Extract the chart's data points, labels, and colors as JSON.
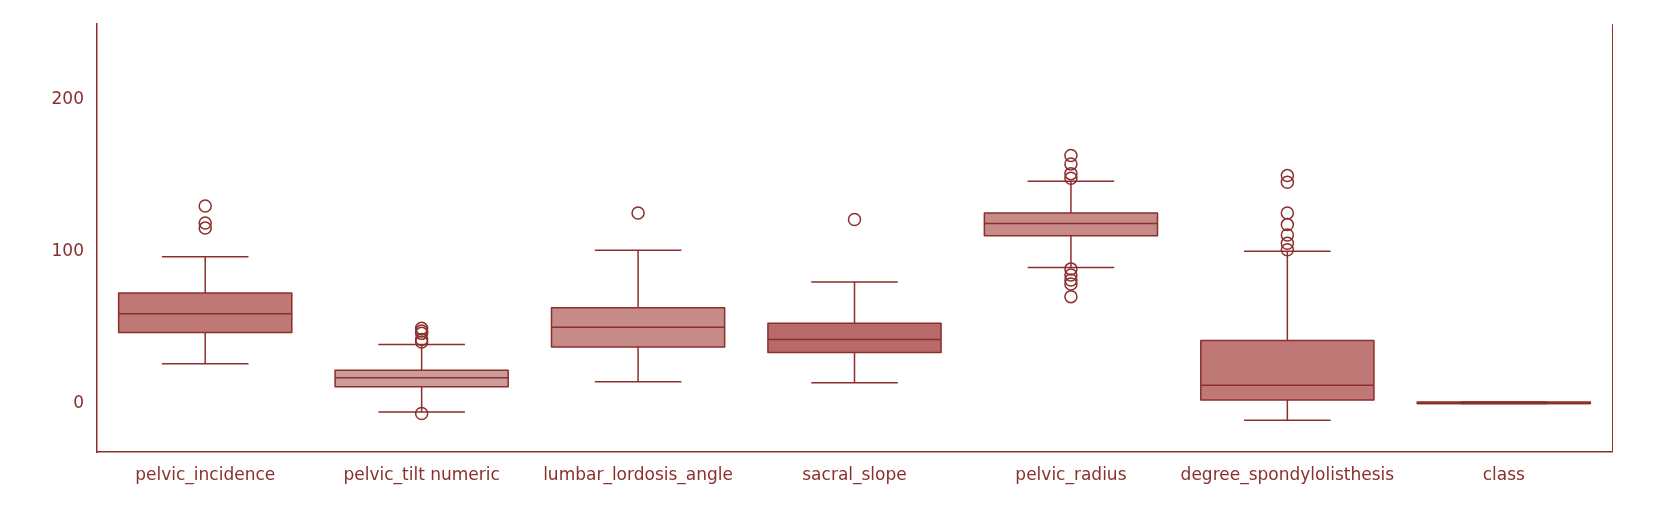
{
  "chart_data": {
    "type": "box",
    "categories": [
      "pelvic_incidence",
      "pelvic_tilt numeric",
      "lumbar_lordosis_angle",
      "sacral_slope",
      "pelvic_radius",
      "degree_spondylolisthesis",
      "class"
    ],
    "colors": [
      "#bf7876",
      "#cc9c9b",
      "#c68a88",
      "#b86a68",
      "#c68a88",
      "#bf7876",
      "#bf7876"
    ],
    "boxes": [
      {
        "low": 26.2,
        "q1": 46.8,
        "median": 59.1,
        "q3": 72.8,
        "high": 96.7,
        "outliers": [
          130.2,
          119,
          115.6
        ]
      },
      {
        "low": -5.6,
        "q1": 11,
        "median": 16.9,
        "q3": 21.9,
        "high": 38.9,
        "outliers": [
          49.5,
          47.8,
          46.2,
          42.2,
          40.5,
          -6.6
        ]
      },
      {
        "low": 14.3,
        "q1": 37.2,
        "median": 50.2,
        "q3": 63.1,
        "high": 101,
        "outliers": [
          125.6
        ]
      },
      {
        "low": 13.6,
        "q1": 33.6,
        "median": 42.2,
        "q3": 52.8,
        "high": 80.1,
        "outliers": [
          121.3
        ]
      },
      {
        "low": 89.7,
        "q1": 110.6,
        "median": 118.6,
        "q3": 125.6,
        "high": 146.5,
        "outliers": [
          163.5,
          157.8,
          151.5,
          148.5,
          88.7,
          84.7,
          81.4,
          78.7,
          70.4
        ]
      },
      {
        "low": -11,
        "q1": 2.3,
        "median": 12,
        "q3": 41.5,
        "high": 100.3,
        "outliers": [
          150.2,
          145.8,
          125.6,
          117.9,
          111,
          105.6,
          101.3
        ]
      },
      {
        "low": 0,
        "q1": 0,
        "median": 0,
        "q3": 1,
        "high": 1
      }
    ],
    "ylim": [
      -32,
      250
    ],
    "yticks": [
      0,
      100,
      200
    ],
    "grid": false,
    "legend": false
  }
}
